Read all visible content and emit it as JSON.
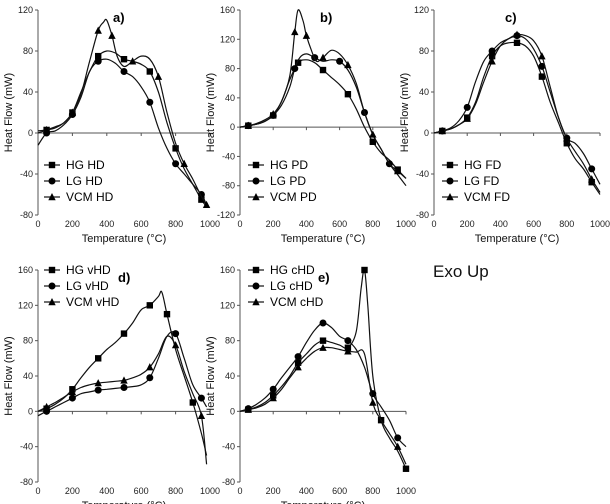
{
  "annotation": "Exo Up",
  "chart_data": [
    {
      "type": "line",
      "label": "a)",
      "xlabel": "Temperature (°C)",
      "ylabel": "Heat Flow (mW)",
      "xlim": [
        0,
        1000
      ],
      "ylim": [
        -80,
        120
      ],
      "xticks": [
        0,
        200,
        400,
        600,
        800,
        1000
      ],
      "yticks": [
        -80,
        -40,
        0,
        40,
        80,
        120
      ],
      "legend_position": "bottom-left",
      "series": [
        {
          "name": "HG HD",
          "marker": "square",
          "x": [
            0,
            50,
            100,
            150,
            200,
            250,
            300,
            350,
            400,
            450,
            500,
            550,
            600,
            650,
            700,
            750,
            800,
            850,
            900,
            950,
            980
          ],
          "y": [
            2,
            3,
            5,
            10,
            20,
            40,
            60,
            75,
            80,
            78,
            72,
            70,
            67,
            60,
            40,
            10,
            -15,
            -35,
            -50,
            -65,
            -72
          ]
        },
        {
          "name": "LG HD",
          "marker": "circle",
          "x": [
            0,
            50,
            100,
            150,
            200,
            250,
            300,
            350,
            400,
            450,
            500,
            550,
            600,
            650,
            700,
            750,
            800,
            850,
            900,
            950,
            980
          ],
          "y": [
            -12,
            0,
            2,
            8,
            18,
            35,
            60,
            70,
            72,
            68,
            60,
            55,
            45,
            30,
            5,
            -15,
            -30,
            -40,
            -50,
            -60,
            -70
          ]
        },
        {
          "name": "VCM HD",
          "marker": "triangle",
          "x": [
            0,
            50,
            100,
            150,
            200,
            250,
            300,
            350,
            380,
            400,
            430,
            460,
            500,
            550,
            600,
            650,
            700,
            750,
            800,
            850,
            900,
            950,
            980
          ],
          "y": [
            0,
            3,
            6,
            10,
            20,
            38,
            70,
            100,
            108,
            110,
            95,
            75,
            65,
            70,
            75,
            72,
            55,
            20,
            -10,
            -30,
            -45,
            -62,
            -70
          ]
        }
      ]
    },
    {
      "type": "line",
      "label": "b)",
      "xlabel": "Temperature (°C)",
      "ylabel": "Heat Flow (mW)",
      "xlim": [
        0,
        1000
      ],
      "ylim": [
        -120,
        160
      ],
      "xticks": [
        0,
        200,
        400,
        600,
        800,
        1000
      ],
      "yticks": [
        -120,
        -80,
        -40,
        0,
        40,
        80,
        120,
        160
      ],
      "legend_position": "bottom-left",
      "series": [
        {
          "name": "HG PD",
          "marker": "square",
          "x": [
            0,
            50,
            100,
            150,
            200,
            250,
            300,
            350,
            400,
            450,
            500,
            550,
            600,
            650,
            700,
            750,
            800,
            850,
            900,
            950,
            1000
          ],
          "y": [
            0,
            2,
            4,
            8,
            16,
            35,
            65,
            88,
            92,
            88,
            78,
            68,
            58,
            45,
            25,
            0,
            -20,
            -35,
            -45,
            -58,
            -70
          ]
        },
        {
          "name": "LG PD",
          "marker": "circle",
          "x": [
            0,
            50,
            100,
            150,
            200,
            250,
            300,
            330,
            360,
            400,
            450,
            500,
            550,
            600,
            650,
            700,
            750,
            800,
            850,
            900,
            950,
            1000
          ],
          "y": [
            0,
            2,
            4,
            8,
            16,
            30,
            55,
            80,
            95,
            100,
            95,
            90,
            92,
            90,
            78,
            55,
            20,
            -10,
            -30,
            -50,
            -65,
            -80
          ]
        },
        {
          "name": "VCM PD",
          "marker": "triangle",
          "x": [
            0,
            50,
            100,
            150,
            200,
            250,
            300,
            330,
            350,
            380,
            400,
            430,
            460,
            500,
            550,
            600,
            650,
            700,
            750,
            800,
            850,
            900,
            950,
            1000
          ],
          "y": [
            0,
            2,
            5,
            10,
            18,
            35,
            70,
            130,
            160,
            145,
            125,
            105,
            90,
            95,
            105,
            100,
            85,
            60,
            20,
            -10,
            -30,
            -50,
            -60,
            -70
          ]
        }
      ]
    },
    {
      "type": "line",
      "label": "c)",
      "xlabel": "Temperature (°C)",
      "ylabel": "Heat Flow (mW)",
      "xlim": [
        0,
        1000
      ],
      "ylim": [
        -80,
        120
      ],
      "xticks": [
        0,
        200,
        400,
        600,
        800,
        1000
      ],
      "yticks": [
        -80,
        -40,
        0,
        40,
        80,
        120
      ],
      "legend_position": "bottom-left",
      "series": [
        {
          "name": "HG FD",
          "marker": "square",
          "x": [
            0,
            50,
            100,
            150,
            200,
            250,
            300,
            350,
            400,
            450,
            500,
            550,
            600,
            650,
            700,
            750,
            800,
            850,
            900,
            950,
            1000
          ],
          "y": [
            0,
            2,
            4,
            8,
            15,
            30,
            55,
            75,
            85,
            88,
            88,
            85,
            75,
            55,
            30,
            10,
            -10,
            -25,
            -35,
            -48,
            -60
          ]
        },
        {
          "name": "LG FD",
          "marker": "circle",
          "x": [
            0,
            50,
            100,
            150,
            200,
            250,
            300,
            350,
            400,
            450,
            500,
            550,
            600,
            650,
            700,
            750,
            800,
            850,
            900,
            950,
            1000
          ],
          "y": [
            0,
            2,
            5,
            12,
            25,
            50,
            70,
            80,
            88,
            92,
            95,
            92,
            82,
            65,
            40,
            15,
            -5,
            -10,
            -20,
            -35,
            -50
          ]
        },
        {
          "name": "VCM FD",
          "marker": "triangle",
          "x": [
            0,
            50,
            100,
            150,
            200,
            250,
            300,
            350,
            400,
            450,
            500,
            550,
            600,
            650,
            700,
            750,
            800,
            850,
            900,
            950,
            1000
          ],
          "y": [
            0,
            2,
            4,
            8,
            14,
            28,
            50,
            70,
            85,
            92,
            96,
            95,
            90,
            75,
            45,
            15,
            -5,
            -18,
            -30,
            -45,
            -58
          ]
        }
      ]
    },
    {
      "type": "line",
      "label": "d)",
      "xlabel": "Temperature (°C)",
      "ylabel": "Heat Flow (mW)",
      "xlim": [
        0,
        1000
      ],
      "ylim": [
        -80,
        160
      ],
      "xticks": [
        0,
        200,
        400,
        600,
        800,
        1000
      ],
      "yticks": [
        -80,
        -40,
        0,
        40,
        80,
        120,
        160
      ],
      "legend_position": "top-left",
      "series": [
        {
          "name": "HG vHD",
          "marker": "square",
          "x": [
            0,
            50,
            100,
            150,
            200,
            250,
            300,
            350,
            400,
            450,
            500,
            550,
            600,
            650,
            700,
            720,
            750,
            800,
            850,
            900,
            950,
            980
          ],
          "y": [
            0,
            3,
            8,
            15,
            25,
            38,
            50,
            60,
            70,
            78,
            88,
            100,
            115,
            120,
            130,
            135,
            110,
            70,
            40,
            10,
            -25,
            -50
          ]
        },
        {
          "name": "LG vHD",
          "marker": "circle",
          "x": [
            0,
            50,
            100,
            150,
            200,
            250,
            300,
            350,
            400,
            450,
            500,
            550,
            600,
            650,
            700,
            750,
            800,
            850,
            900,
            950,
            980
          ],
          "y": [
            -5,
            0,
            5,
            10,
            15,
            20,
            22,
            24,
            25,
            26,
            27,
            28,
            30,
            38,
            60,
            85,
            88,
            60,
            30,
            15,
            5
          ]
        },
        {
          "name": "VCM vHD",
          "marker": "triangle",
          "x": [
            0,
            50,
            100,
            150,
            200,
            250,
            300,
            350,
            400,
            450,
            500,
            550,
            600,
            650,
            700,
            750,
            800,
            850,
            900,
            950,
            980
          ],
          "y": [
            0,
            5,
            10,
            16,
            22,
            27,
            30,
            32,
            33,
            34,
            35,
            38,
            42,
            50,
            65,
            85,
            75,
            45,
            20,
            -5,
            -60
          ]
        }
      ]
    },
    {
      "type": "line",
      "label": "e)",
      "xlabel": "Temperature (°C)",
      "ylabel": "Heat Flow (mW)",
      "xlim": [
        0,
        1000
      ],
      "ylim": [
        -80,
        160
      ],
      "xticks": [
        0,
        200,
        400,
        600,
        800,
        1000
      ],
      "yticks": [
        -80,
        -40,
        0,
        40,
        80,
        120,
        160
      ],
      "legend_position": "top-left",
      "series": [
        {
          "name": "HG cHD",
          "marker": "square",
          "x": [
            0,
            50,
            100,
            150,
            200,
            250,
            300,
            350,
            400,
            450,
            500,
            550,
            600,
            650,
            700,
            730,
            750,
            770,
            800,
            850,
            900,
            950,
            1000
          ],
          "y": [
            0,
            2,
            5,
            10,
            18,
            28,
            40,
            55,
            65,
            75,
            80,
            78,
            75,
            72,
            90,
            140,
            160,
            120,
            40,
            -10,
            -30,
            -45,
            -65
          ]
        },
        {
          "name": "LG cHD",
          "marker": "circle",
          "x": [
            0,
            50,
            100,
            150,
            200,
            250,
            300,
            350,
            400,
            450,
            500,
            550,
            600,
            650,
            700,
            750,
            800,
            850,
            900,
            950,
            1000
          ],
          "y": [
            0,
            3,
            8,
            15,
            25,
            38,
            50,
            62,
            78,
            92,
            100,
            95,
            85,
            80,
            70,
            50,
            20,
            5,
            -10,
            -30,
            -40
          ]
        },
        {
          "name": "VCM cHD",
          "marker": "triangle",
          "x": [
            0,
            50,
            100,
            150,
            200,
            250,
            300,
            350,
            400,
            450,
            500,
            550,
            600,
            650,
            700,
            750,
            800,
            850,
            900,
            950,
            1000
          ],
          "y": [
            0,
            2,
            4,
            8,
            15,
            25,
            38,
            50,
            60,
            68,
            72,
            72,
            70,
            68,
            67,
            65,
            10,
            -10,
            -25,
            -40,
            -60
          ]
        }
      ]
    }
  ]
}
